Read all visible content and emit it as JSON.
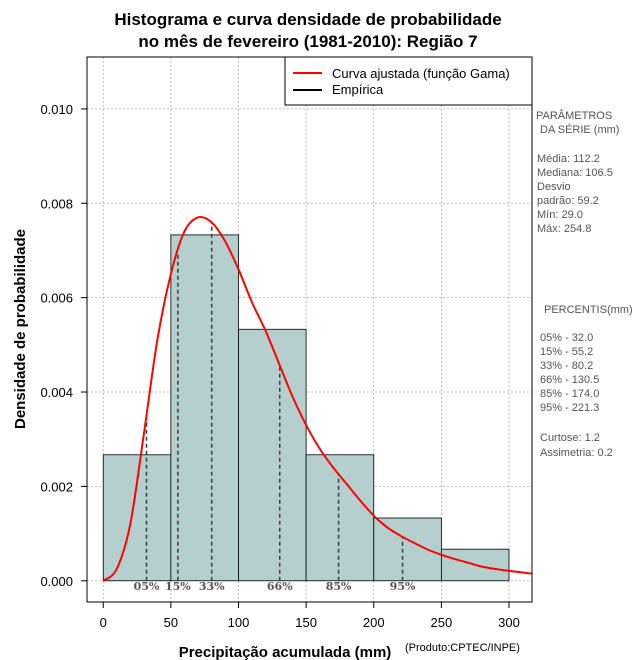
{
  "chart_data": {
    "type": "bar",
    "title": [
      "Histograma e curva densidade de probabilidade",
      "no mês de fevereiro (1981-2010): Região 7"
    ],
    "xlabel": "Precipitação acumulada (mm)",
    "ylabel": "Densidade de probabilidade",
    "credit": "(Produto:CPTEC/INPE)",
    "xlim": [
      -12,
      317
    ],
    "ylim": [
      -0.00045,
      0.0111
    ],
    "x_ticks": [
      0,
      50,
      100,
      150,
      200,
      250,
      300
    ],
    "y_ticks": [
      0.0,
      0.002,
      0.004,
      0.006,
      0.008,
      0.01
    ],
    "y_tick_labels": [
      "0.000",
      "0.002",
      "0.004",
      "0.006",
      "0.008",
      "0.010"
    ],
    "grid": true,
    "bins": [
      {
        "from": 0,
        "to": 50,
        "density": 0.00267
      },
      {
        "from": 50,
        "to": 100,
        "density": 0.00733
      },
      {
        "from": 100,
        "to": 150,
        "density": 0.00533
      },
      {
        "from": 150,
        "to": 200,
        "density": 0.00267
      },
      {
        "from": 200,
        "to": 250,
        "density": 0.00133
      },
      {
        "from": 250,
        "to": 300,
        "density": 0.00067
      }
    ],
    "fitted_curve": {
      "name": "Curva ajustada (função Gama)",
      "color": "#ff0000",
      "x": [
        0,
        10,
        20,
        30,
        40,
        50,
        60,
        70,
        80,
        90,
        100,
        110,
        120,
        130,
        140,
        150,
        160,
        170,
        180,
        190,
        200,
        210,
        220,
        230,
        240,
        250,
        260,
        270,
        280,
        290,
        300,
        317
      ],
      "y": [
        0.0,
        0.00025,
        0.0012,
        0.0031,
        0.0051,
        0.0065,
        0.0074,
        0.0077,
        0.0076,
        0.0072,
        0.0066,
        0.0059,
        0.0053,
        0.0046,
        0.0039,
        0.0033,
        0.0028,
        0.0024,
        0.00205,
        0.0017,
        0.00138,
        0.00113,
        0.00095,
        0.0008,
        0.00066,
        0.00055,
        0.00046,
        0.00038,
        0.0003,
        0.00025,
        0.00021,
        0.00015
      ]
    },
    "empirical_legend": {
      "name": "Empírica",
      "color": "#000000"
    },
    "bar_color": "#b5cfcf",
    "percentile_lines": [
      {
        "label": "05%",
        "x": 32.0
      },
      {
        "label": "15%",
        "x": 55.2
      },
      {
        "label": "33%",
        "x": 80.2
      },
      {
        "label": "66%",
        "x": 130.5
      },
      {
        "label": "85%",
        "x": 174.0
      },
      {
        "label": "95%",
        "x": 221.3
      }
    ]
  },
  "stats_panel": {
    "params_title_1": "PARÂMETROS",
    "params_title_2": "DA SÉRIE (mm)",
    "mean": "Média:  112.2",
    "median": "Mediana:  106.5",
    "stdev_1": "Desvio",
    "stdev_2": "padrão:  59.2",
    "min": "Mín:  29.0",
    "max": "Máx:  254.8",
    "percentis_title": "PERCENTIS(mm)",
    "p05": "05% -   32.0",
    "p15": "15% -   55.2",
    "p33": "33% -   80.2",
    "p66": "66% -   130.5",
    "p85": "85% -   174.0",
    "p95": "95% -   221.3",
    "kurtosis": "Curtose:  1.2",
    "skewness": "Assimetria:  0.2"
  }
}
